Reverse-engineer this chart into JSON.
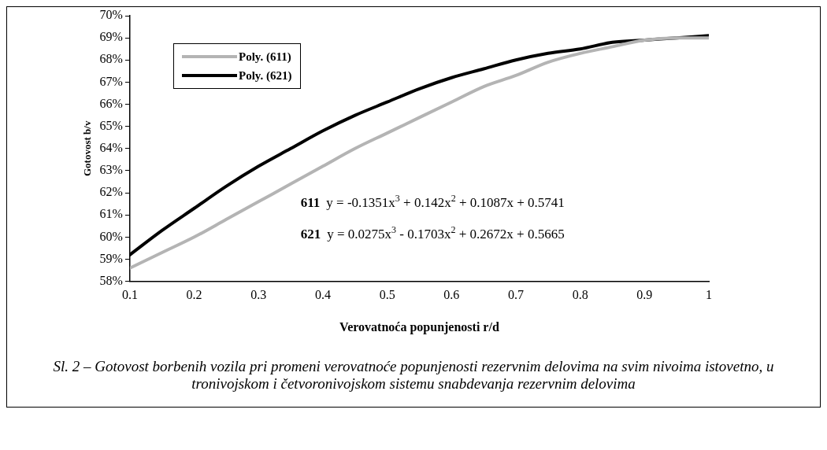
{
  "chart_data": {
    "type": "line",
    "xlabel": "Verovatnoća popunjenosti r/d",
    "ylabel": "Gotovost b/v",
    "xlim": [
      0.1,
      1
    ],
    "xticks": [
      0.1,
      0.2,
      0.3,
      0.4,
      0.5,
      0.6,
      0.7,
      0.8,
      0.9,
      1
    ],
    "ylim": [
      58,
      70
    ],
    "yticks": [
      {
        "value": 58,
        "label": "58%"
      },
      {
        "value": 59,
        "label": "59%"
      },
      {
        "value": 60,
        "label": "60%"
      },
      {
        "value": 61,
        "label": "61%"
      },
      {
        "value": 62,
        "label": "62%"
      },
      {
        "value": 63,
        "label": "63%"
      },
      {
        "value": 64,
        "label": "64%"
      },
      {
        "value": 65,
        "label": "65%"
      },
      {
        "value": 66,
        "label": "66%"
      },
      {
        "value": 67,
        "label": "67%"
      },
      {
        "value": 68,
        "label": "68%"
      },
      {
        "value": 69,
        "label": "69%"
      },
      {
        "value": 70,
        "label": "70%"
      }
    ],
    "x": [
      0.1,
      0.15,
      0.2,
      0.25,
      0.3,
      0.35,
      0.4,
      0.45,
      0.5,
      0.55,
      0.6,
      0.65,
      0.7,
      0.75,
      0.8,
      0.85,
      0.9,
      0.95,
      1
    ],
    "series": [
      {
        "name": "Poly. (611)",
        "color": "#b4b4b4",
        "values": [
          58.6,
          59.3,
          60.0,
          60.8,
          61.6,
          62.4,
          63.2,
          64.0,
          64.7,
          65.4,
          66.1,
          66.8,
          67.3,
          67.9,
          68.3,
          68.6,
          68.9,
          69.0,
          69.0
        ]
      },
      {
        "name": "Poly. (621)",
        "color": "#000000",
        "values": [
          59.2,
          60.3,
          61.3,
          62.3,
          63.2,
          64.0,
          64.8,
          65.5,
          66.1,
          66.7,
          67.2,
          67.6,
          68.0,
          68.3,
          68.5,
          68.8,
          68.9,
          69.0,
          69.1
        ]
      }
    ],
    "legend": "top left",
    "grid": false,
    "marker": "none",
    "line_style": "solid",
    "annotations": [
      "611  y = -0.1351x$^{3}$ + 0.142x$^{2}$ + 0.1087x + 0.5741",
      "621  y = 0.0275x$^{3}$ - 0.1703x$^{2}$ + 0.2672x + 0.5665",
      "Sl. 2 – Gotovost borbenih vozila pri promeni verovatnoće popunjenosti rezervnim delovima  na svim nivoima istovetno, u tronivojskom i četvoronivojskom sistemu snabdevanja rezervnim delovima"
    ]
  }
}
